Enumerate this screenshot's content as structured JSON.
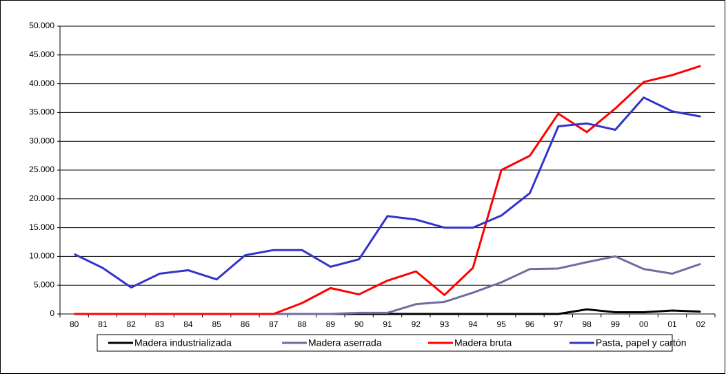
{
  "chart_data": {
    "type": "line",
    "categories": [
      "80",
      "81",
      "82",
      "83",
      "84",
      "85",
      "86",
      "87",
      "88",
      "89",
      "90",
      "91",
      "92",
      "93",
      "94",
      "95",
      "96",
      "97",
      "98",
      "99",
      "00",
      "01",
      "02"
    ],
    "series": [
      {
        "name": "Madera industrializada",
        "color": "#000000",
        "values": [
          0,
          0,
          0,
          0,
          0,
          0,
          0,
          0,
          0,
          0,
          0,
          0,
          0,
          0,
          0,
          0,
          0,
          0,
          800,
          300,
          300,
          600,
          400
        ]
      },
      {
        "name": "Madera aserrada",
        "color": "#6d6d9e",
        "values": [
          0,
          0,
          0,
          0,
          0,
          0,
          0,
          0,
          0,
          0,
          200,
          200,
          1700,
          2100,
          3700,
          5500,
          7800,
          7900,
          9000,
          10000,
          7800,
          7000,
          8700
        ]
      },
      {
        "name": "Madera bruta",
        "color": "#ff0000",
        "values": [
          0,
          0,
          0,
          0,
          0,
          0,
          0,
          0,
          1900,
          4500,
          3400,
          5800,
          7400,
          3300,
          8000,
          25000,
          27500,
          34800,
          31600,
          35700,
          40300,
          41500,
          43100
        ]
      },
      {
        "name": "Pasta, papel y cartón",
        "color": "#3333cc",
        "values": [
          10400,
          8000,
          4600,
          7000,
          7600,
          6000,
          10200,
          11100,
          11100,
          8200,
          9500,
          17000,
          16400,
          15000,
          15000,
          17100,
          21000,
          32600,
          33100,
          32000,
          37600,
          35200,
          34300
        ]
      }
    ],
    "ylim": [
      0,
      50000
    ],
    "yticks": [
      {
        "value": 0,
        "label": "0"
      },
      {
        "value": 5000,
        "label": "5.000"
      },
      {
        "value": 10000,
        "label": "10.000"
      },
      {
        "value": 15000,
        "label": "15.000"
      },
      {
        "value": 20000,
        "label": "20.000"
      },
      {
        "value": 25000,
        "label": "25.000"
      },
      {
        "value": 30000,
        "label": "30.000"
      },
      {
        "value": 35000,
        "label": "35.000"
      },
      {
        "value": 40000,
        "label": "40.000"
      },
      {
        "value": 45000,
        "label": "45.000"
      },
      {
        "value": 50000,
        "label": "50.000"
      }
    ],
    "grid": true,
    "legend": "bottom"
  }
}
